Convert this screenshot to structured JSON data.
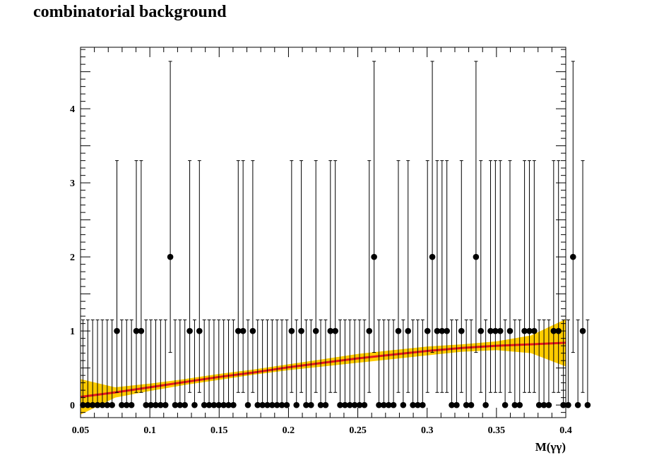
{
  "chart_data": {
    "type": "scatter",
    "title": "combinatorial background",
    "xlabel": "M(γγ)",
    "ylabel": "",
    "xlim": [
      0.05,
      0.4
    ],
    "ylim": [
      -0.17,
      4.83
    ],
    "x_ticks": [
      "0.05",
      "0.1",
      "0.15",
      "0.2",
      "0.25",
      "0.3",
      "0.35",
      "0.4"
    ],
    "y_ticks": [
      "0",
      "1",
      "2",
      "3",
      "4"
    ],
    "grid": false,
    "legend": "none",
    "bins": {
      "x_start": 0.05,
      "bin_width": 0.0035,
      "counts": [
        0,
        0,
        0,
        0,
        0,
        0,
        0,
        1,
        0,
        0,
        0,
        1,
        1,
        0,
        0,
        0,
        0,
        0,
        2,
        0,
        0,
        0,
        1,
        0,
        1,
        0,
        0,
        0,
        0,
        0,
        0,
        0,
        1,
        1,
        0,
        1,
        0,
        0,
        0,
        0,
        0,
        0,
        0,
        1,
        0,
        1,
        0,
        0,
        1,
        0,
        0,
        1,
        1,
        0,
        0,
        0,
        0,
        0,
        0,
        1,
        2,
        0,
        0,
        0,
        0,
        1,
        0,
        1,
        0,
        0,
        0,
        1,
        2,
        1,
        1,
        1,
        0,
        0,
        1,
        0,
        0,
        2,
        1,
        0,
        1,
        1,
        1,
        0,
        1,
        0,
        0,
        1,
        1,
        1,
        0,
        0,
        0,
        1,
        1,
        0,
        0,
        2,
        0,
        1,
        0
      ]
    },
    "series": [
      {
        "name": "",
        "style": "points with error bars",
        "color": "#000000"
      },
      {
        "name": "",
        "style": "fit curve",
        "color": "#e41a1c",
        "x": [
          0.05,
          0.075,
          0.1,
          0.125,
          0.15,
          0.175,
          0.2,
          0.225,
          0.25,
          0.275,
          0.3,
          0.325,
          0.35,
          0.375,
          0.4
        ],
        "y": [
          0.11,
          0.17,
          0.24,
          0.31,
          0.38,
          0.44,
          0.51,
          0.57,
          0.63,
          0.68,
          0.73,
          0.77,
          0.8,
          0.82,
          0.84
        ]
      },
      {
        "name": "",
        "style": "error band",
        "color": "#ffcc00",
        "x": [
          0.05,
          0.075,
          0.1,
          0.125,
          0.15,
          0.175,
          0.2,
          0.225,
          0.25,
          0.275,
          0.3,
          0.325,
          0.35,
          0.375,
          0.4
        ],
        "lo": [
          -0.13,
          0.1,
          0.19,
          0.27,
          0.34,
          0.41,
          0.47,
          0.52,
          0.57,
          0.62,
          0.67,
          0.72,
          0.74,
          0.7,
          0.52
        ],
        "hi": [
          0.35,
          0.24,
          0.29,
          0.35,
          0.42,
          0.48,
          0.55,
          0.62,
          0.69,
          0.74,
          0.79,
          0.82,
          0.86,
          0.94,
          1.16
        ]
      }
    ]
  }
}
